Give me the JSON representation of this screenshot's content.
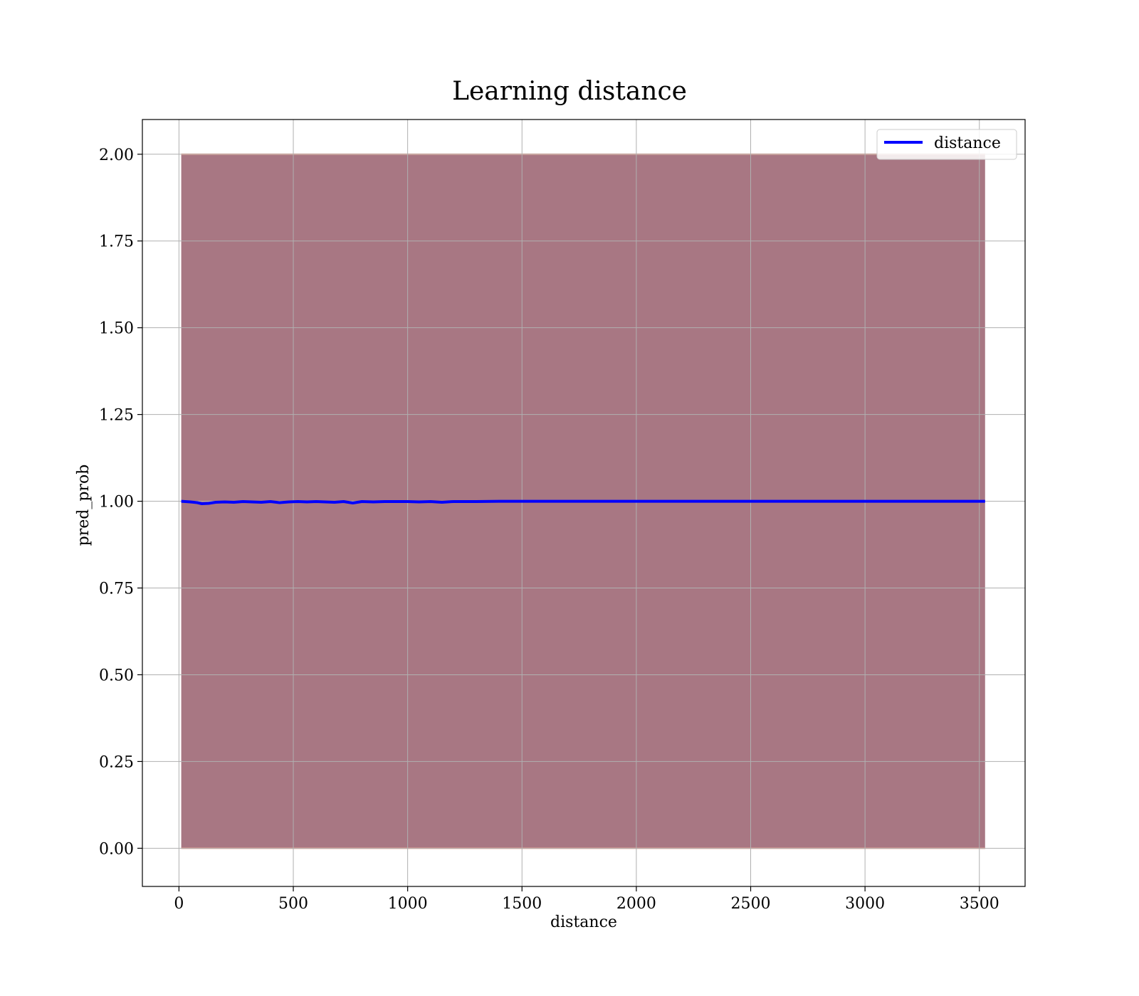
{
  "chart_data": {
    "type": "line",
    "title": "Learning distance",
    "xlabel": "distance",
    "ylabel": "pred_prob",
    "xlim": [
      -160,
      3700
    ],
    "ylim": [
      -0.11,
      2.1
    ],
    "xticks": [
      0,
      500,
      1000,
      1500,
      2000,
      2500,
      3000,
      3500
    ],
    "yticks": [
      0.0,
      0.25,
      0.5,
      0.75,
      1.0,
      1.25,
      1.5,
      1.75,
      2.0
    ],
    "xtick_labels": [
      "0",
      "500",
      "1000",
      "1500",
      "2000",
      "2500",
      "3000",
      "3500"
    ],
    "ytick_labels": [
      "0.00",
      "0.25",
      "0.50",
      "0.75",
      "1.00",
      "1.25",
      "1.50",
      "1.75",
      "2.00"
    ],
    "grid": true,
    "legend_position": "top-right",
    "series": [
      {
        "name": "distance",
        "color": "#0000ff",
        "x": [
          10,
          50,
          80,
          100,
          130,
          160,
          200,
          240,
          280,
          320,
          360,
          400,
          440,
          480,
          520,
          560,
          600,
          640,
          680,
          720,
          760,
          800,
          850,
          900,
          950,
          1000,
          1050,
          1100,
          1150,
          1200,
          1250,
          1300,
          1400,
          1500,
          1600,
          1700,
          1800,
          2000,
          2200,
          2400,
          2600,
          2800,
          3000,
          3200,
          3400,
          3525
        ],
        "y": [
          1.0,
          0.998,
          0.996,
          0.993,
          0.994,
          0.997,
          0.998,
          0.997,
          0.999,
          0.998,
          0.997,
          0.999,
          0.996,
          0.998,
          0.999,
          0.998,
          0.999,
          0.998,
          0.997,
          0.999,
          0.995,
          0.999,
          0.998,
          0.999,
          0.999,
          0.999,
          0.998,
          0.999,
          0.997,
          0.999,
          0.999,
          0.999,
          1.0,
          1.0,
          1.0,
          1.0,
          1.0,
          1.0,
          1.0,
          1.0,
          1.0,
          1.0,
          1.0,
          1.0,
          1.0,
          1.0
        ]
      }
    ],
    "band": {
      "color": "#8b4a5a",
      "x": [
        10,
        3525
      ],
      "lower": 0.0,
      "upper": 2.0
    }
  }
}
